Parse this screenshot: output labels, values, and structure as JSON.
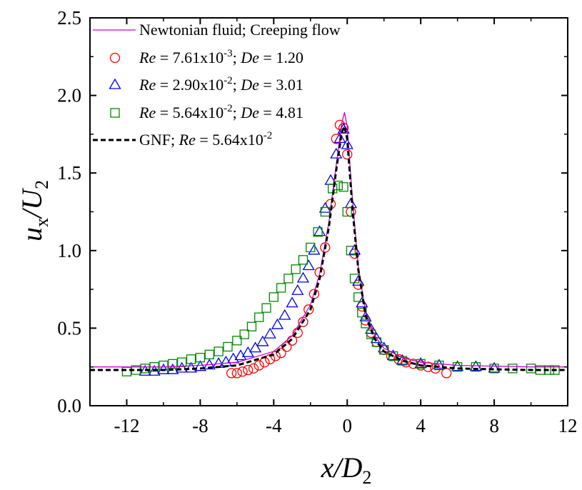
{
  "chart_data": {
    "type": "scatter",
    "title": "",
    "xlabel": {
      "main": "x/D",
      "sub": "2"
    },
    "ylabel": {
      "main": "u",
      "sub": "x",
      "mid": "/U",
      "sub2": "2"
    },
    "xlim": [
      -14,
      12
    ],
    "ylim": [
      0,
      2.5
    ],
    "xticks": [
      -12,
      -8,
      -4,
      0,
      4,
      8,
      12
    ],
    "yticks": [
      0.0,
      0.5,
      1.0,
      1.5,
      2.0,
      2.5
    ],
    "xtick_labels": [
      "-12",
      "-8",
      "-4",
      "0",
      "4",
      "8",
      "12"
    ],
    "ytick_labels": [
      "0.0",
      "0.5",
      "1.0",
      "1.5",
      "2.0",
      "2.5"
    ],
    "legend_position": "top-left",
    "legend": [
      {
        "id": "newtonian",
        "parts": [
          {
            "t": "Newtonian fluid; Creeping flow"
          }
        ]
      },
      {
        "id": "re1",
        "parts": [
          {
            "t": "Re",
            "i": true
          },
          {
            "t": " = 7.61x10"
          },
          {
            "t": "-3",
            "sup": true
          },
          {
            "t": "; "
          },
          {
            "t": "De",
            "i": true
          },
          {
            "t": " = 1.20"
          }
        ]
      },
      {
        "id": "re2",
        "parts": [
          {
            "t": "Re",
            "i": true
          },
          {
            "t": " = 2.90x10"
          },
          {
            "t": "-2",
            "sup": true
          },
          {
            "t": "; "
          },
          {
            "t": "De",
            "i": true
          },
          {
            "t": " = 3.01"
          }
        ]
      },
      {
        "id": "re3",
        "parts": [
          {
            "t": "Re",
            "i": true
          },
          {
            "t": " = 5.64x10"
          },
          {
            "t": "-2",
            "sup": true
          },
          {
            "t": "; "
          },
          {
            "t": "De",
            "i": true
          },
          {
            "t": " = 4.81"
          }
        ]
      },
      {
        "id": "gnf",
        "parts": [
          {
            "t": "GNF; "
          },
          {
            "t": "Re",
            "i": true
          },
          {
            "t": " = 5.64x10"
          },
          {
            "t": "-2",
            "sup": true
          }
        ]
      }
    ],
    "series": [
      {
        "id": "newtonian",
        "kind": "line",
        "color": "#cc00cc",
        "dash": "",
        "x": [
          -14,
          -10,
          -8,
          -6,
          -4,
          -3,
          -2,
          -1.5,
          -1,
          -0.6,
          -0.3,
          -0.15,
          0,
          0.3,
          0.6,
          1,
          1.5,
          2,
          3,
          4,
          6,
          8,
          10,
          12
        ],
        "y": [
          0.25,
          0.25,
          0.26,
          0.28,
          0.35,
          0.45,
          0.65,
          0.85,
          1.18,
          1.55,
          1.82,
          1.89,
          1.8,
          1.3,
          0.9,
          0.6,
          0.45,
          0.37,
          0.31,
          0.28,
          0.26,
          0.255,
          0.25,
          0.25
        ]
      },
      {
        "id": "gnf",
        "kind": "line",
        "color": "#000000",
        "dash": "7,4",
        "x": [
          -14,
          -10,
          -8,
          -6,
          -4,
          -3,
          -2,
          -1.5,
          -1,
          -0.6,
          -0.3,
          -0.15,
          0,
          0.3,
          0.6,
          1,
          1.5,
          2,
          3,
          4,
          6,
          8,
          10,
          12
        ],
        "y": [
          0.23,
          0.23,
          0.24,
          0.26,
          0.33,
          0.43,
          0.62,
          0.82,
          1.15,
          1.52,
          1.76,
          1.8,
          1.72,
          1.25,
          0.88,
          0.58,
          0.43,
          0.35,
          0.29,
          0.26,
          0.24,
          0.235,
          0.23,
          0.23
        ]
      },
      {
        "id": "re1",
        "kind": "marker",
        "marker": "circle",
        "color": "#ff0000",
        "x": [
          -6.3,
          -6.0,
          -5.7,
          -5.4,
          -5.1,
          -4.8,
          -4.5,
          -4.2,
          -3.9,
          -3.6,
          -3.3,
          -3.0,
          -2.7,
          -2.4,
          -2.1,
          -1.8,
          -1.5,
          -1.2,
          -0.9,
          -0.6,
          -0.4,
          -0.2,
          0.0,
          0.2,
          0.4,
          0.6,
          0.8,
          1.0,
          1.3,
          1.6,
          2.0,
          2.4,
          2.8,
          3.2,
          3.6,
          4.0,
          4.4,
          4.8,
          5.4
        ],
        "y": [
          0.21,
          0.21,
          0.22,
          0.23,
          0.24,
          0.26,
          0.28,
          0.3,
          0.32,
          0.34,
          0.38,
          0.42,
          0.47,
          0.54,
          0.62,
          0.72,
          0.86,
          1.02,
          1.3,
          1.72,
          1.81,
          1.79,
          1.62,
          1.25,
          0.98,
          0.78,
          0.64,
          0.55,
          0.47,
          0.41,
          0.36,
          0.32,
          0.3,
          0.28,
          0.27,
          0.26,
          0.25,
          0.24,
          0.21
        ]
      },
      {
        "id": "re2",
        "kind": "marker",
        "marker": "triangle",
        "color": "#0000ee",
        "x": [
          -11.0,
          -10.5,
          -10.0,
          -9.5,
          -9.0,
          -8.5,
          -8.0,
          -7.5,
          -7.0,
          -6.6,
          -6.2,
          -5.8,
          -5.4,
          -5.0,
          -4.6,
          -4.2,
          -3.8,
          -3.4,
          -3.0,
          -2.7,
          -2.4,
          -2.1,
          -1.8,
          -1.5,
          -1.2,
          -0.9,
          -0.6,
          -0.4,
          -0.2,
          0.0,
          0.2,
          0.4,
          0.6,
          0.8,
          1.0,
          1.3,
          1.6,
          2.0,
          2.5,
          3.0,
          4.0,
          5.0,
          6.0,
          7.0,
          8.0
        ],
        "y": [
          0.22,
          0.22,
          0.23,
          0.23,
          0.24,
          0.24,
          0.25,
          0.26,
          0.27,
          0.28,
          0.3,
          0.32,
          0.34,
          0.37,
          0.41,
          0.46,
          0.52,
          0.58,
          0.66,
          0.74,
          0.82,
          0.9,
          1.0,
          1.12,
          1.27,
          1.45,
          1.62,
          1.72,
          1.78,
          1.68,
          1.3,
          1.0,
          0.8,
          0.66,
          0.57,
          0.49,
          0.43,
          0.37,
          0.32,
          0.29,
          0.27,
          0.26,
          0.25,
          0.25,
          0.24
        ]
      },
      {
        "id": "re3",
        "kind": "marker",
        "marker": "square",
        "color": "#008800",
        "x": [
          -12.0,
          -11.5,
          -11.0,
          -10.5,
          -10.0,
          -9.5,
          -9.0,
          -8.5,
          -8.0,
          -7.5,
          -7.0,
          -6.5,
          -6.0,
          -5.6,
          -5.2,
          -4.8,
          -4.4,
          -4.0,
          -3.6,
          -3.2,
          -2.8,
          -2.4,
          -2.0,
          -1.6,
          -1.2,
          -0.8,
          -0.5,
          -0.2,
          0.0,
          0.2,
          0.4,
          0.6,
          0.8,
          1.0,
          1.3,
          1.6,
          2.0,
          2.5,
          3.0,
          4.0,
          5.0,
          6.0,
          7.0,
          8.0,
          9.0,
          10.0,
          10.5,
          11.0,
          11.3
        ],
        "y": [
          0.22,
          0.23,
          0.24,
          0.25,
          0.26,
          0.27,
          0.28,
          0.3,
          0.31,
          0.33,
          0.35,
          0.38,
          0.42,
          0.46,
          0.51,
          0.57,
          0.63,
          0.7,
          0.76,
          0.82,
          0.88,
          0.94,
          1.02,
          1.12,
          1.25,
          1.4,
          1.42,
          1.41,
          1.25,
          1.0,
          0.82,
          0.7,
          0.6,
          0.53,
          0.46,
          0.41,
          0.36,
          0.32,
          0.29,
          0.27,
          0.26,
          0.25,
          0.25,
          0.24,
          0.24,
          0.24,
          0.23,
          0.23,
          0.23
        ]
      }
    ]
  }
}
